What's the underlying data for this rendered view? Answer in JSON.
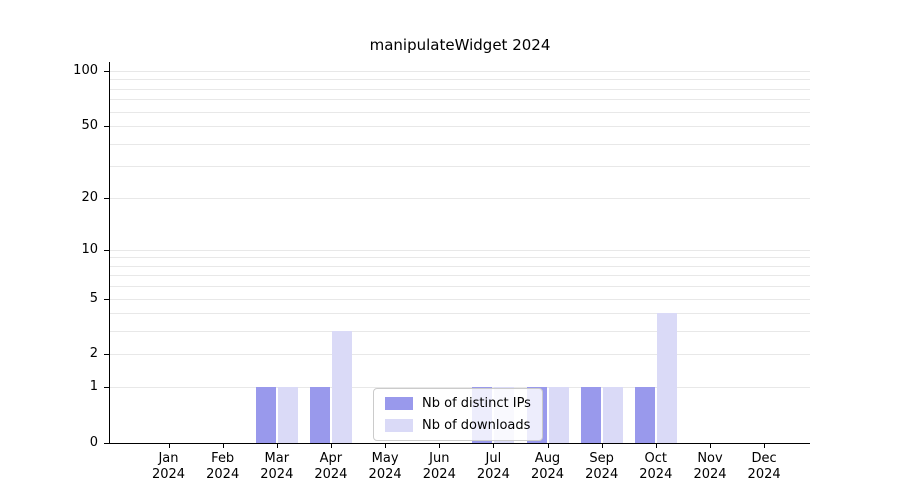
{
  "chart_data": {
    "type": "bar",
    "title": "manipulateWidget 2024",
    "categories": [
      "Jan",
      "Feb",
      "Mar",
      "Apr",
      "May",
      "Jun",
      "Jul",
      "Aug",
      "Sep",
      "Oct",
      "Nov",
      "Dec"
    ],
    "year": "2024",
    "series": [
      {
        "name": "Nb of distinct IPs",
        "color": "#9999ec",
        "values": [
          0,
          0,
          1,
          1,
          0,
          0,
          1,
          1,
          1,
          1,
          0,
          0
        ]
      },
      {
        "name": "Nb of downloads",
        "color": "#dadaf7",
        "values": [
          0,
          0,
          1,
          3,
          0,
          0,
          1,
          1,
          1,
          4,
          0,
          0
        ]
      }
    ],
    "y_ticks": [
      0,
      1,
      2,
      5,
      10,
      20,
      50,
      100
    ],
    "ylim": [
      0,
      100
    ],
    "y_scale": "log10(v+1)",
    "grid": "horizontal light-gray lines at log minor/major positions",
    "legend_position": "inside-bottom-center",
    "xlabel": "",
    "ylabel": ""
  }
}
